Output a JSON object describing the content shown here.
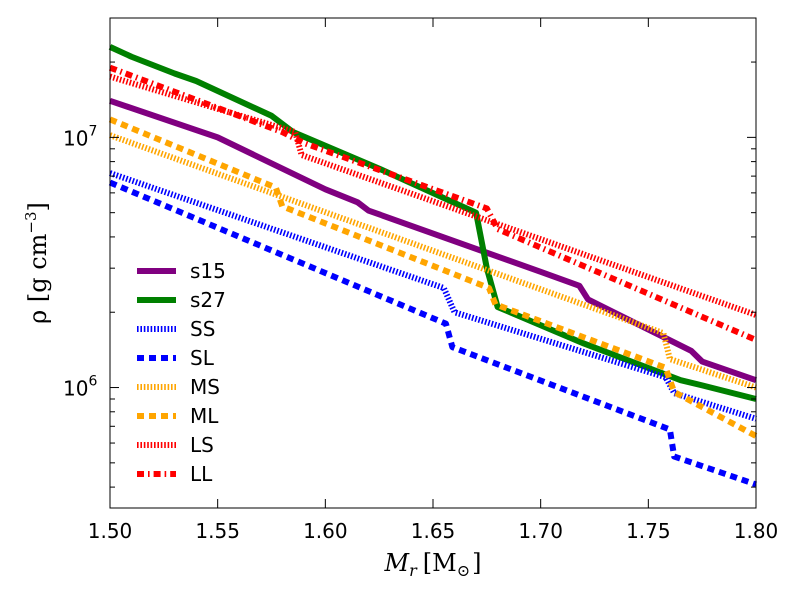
{
  "chart_data": {
    "type": "line",
    "title": "",
    "xlabel_main": "M",
    "xlabel_sub": "r",
    "xlabel_unit": "[M",
    "xlabel_unit_sub": "⊙",
    "xlabel_close": "]",
    "ylabel_main": "ρ [g cm",
    "ylabel_exp": "−3",
    "ylabel_close": "]",
    "xlim": [
      1.5,
      1.8
    ],
    "ylim": [
      330000,
      30000000
    ],
    "yscale": "log",
    "x_ticks": [
      {
        "value": 1.5,
        "label": "1.50"
      },
      {
        "value": 1.55,
        "label": "1.55"
      },
      {
        "value": 1.6,
        "label": "1.60"
      },
      {
        "value": 1.65,
        "label": "1.65"
      },
      {
        "value": 1.7,
        "label": "1.70"
      },
      {
        "value": 1.75,
        "label": "1.75"
      },
      {
        "value": 1.8,
        "label": "1.80"
      }
    ],
    "y_major_ticks": [
      {
        "value": 1000000,
        "label_base": "10",
        "label_exp": "6"
      },
      {
        "value": 10000000,
        "label_base": "10",
        "label_exp": "7"
      }
    ],
    "y_minor_ticks": [
      400000,
      500000,
      600000,
      700000,
      800000,
      900000,
      2000000,
      3000000,
      4000000,
      5000000,
      6000000,
      7000000,
      8000000,
      9000000,
      20000000
    ],
    "legend_position": "lower-left",
    "series": [
      {
        "name": "s15",
        "color": "#800080",
        "style": "solid",
        "x": [
          1.5,
          1.55,
          1.6,
          1.615,
          1.62,
          1.7,
          1.718,
          1.722,
          1.77,
          1.775,
          1.8
        ],
        "y": [
          14000000,
          10000000,
          6200000,
          5500000,
          5100000,
          2900000,
          2550000,
          2250000,
          1400000,
          1270000,
          1070000
        ]
      },
      {
        "name": "s27",
        "color": "#008000",
        "style": "solid",
        "x": [
          1.5,
          1.51,
          1.53,
          1.54,
          1.575,
          1.585,
          1.625,
          1.67,
          1.675,
          1.68,
          1.72,
          1.765,
          1.775,
          1.8
        ],
        "y": [
          23000000,
          21000000,
          18000000,
          16800000,
          12200000,
          10500000,
          7500000,
          5000000,
          3000000,
          2100000,
          1500000,
          1070000,
          1020000,
          900000
        ]
      },
      {
        "name": "SS",
        "color": "#0000ff",
        "style": "dotted",
        "x": [
          1.5,
          1.655,
          1.66,
          1.758,
          1.762,
          1.8
        ],
        "y": [
          7200000,
          2500000,
          2000000,
          1100000,
          950000,
          750000
        ]
      },
      {
        "name": "SL",
        "color": "#0000ff",
        "style": "dashed",
        "x": [
          1.5,
          1.656,
          1.659,
          1.76,
          1.762,
          1.8
        ],
        "y": [
          6600000,
          1800000,
          1450000,
          680000,
          530000,
          410000
        ]
      },
      {
        "name": "MS",
        "color": "#ffa500",
        "style": "dotted",
        "x": [
          1.5,
          1.757,
          1.76,
          1.8
        ],
        "y": [
          10200000,
          1650000,
          1300000,
          1000000
        ]
      },
      {
        "name": "ML",
        "color": "#ffa500",
        "style": "dashed",
        "x": [
          1.5,
          1.577,
          1.58,
          1.676,
          1.679,
          1.758,
          1.762,
          1.8
        ],
        "y": [
          11800000,
          6300000,
          5300000,
          2500000,
          2150000,
          1200000,
          960000,
          640000
        ]
      },
      {
        "name": "LS",
        "color": "#ff0000",
        "style": "dotted",
        "x": [
          1.5,
          1.586,
          1.589,
          1.8
        ],
        "y": [
          17500000,
          10500000,
          8500000,
          1950000
        ]
      },
      {
        "name": "LL",
        "color": "#ff0000",
        "style": "dashdot",
        "x": [
          1.5,
          1.58,
          1.59,
          1.675,
          1.68,
          1.8
        ],
        "y": [
          19000000,
          10500000,
          9500000,
          5200000,
          4300000,
          1550000
        ]
      }
    ]
  }
}
